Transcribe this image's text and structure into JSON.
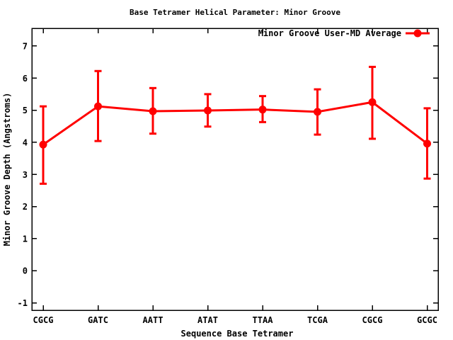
{
  "window": {
    "background": "#ffffff"
  },
  "chart_data": {
    "type": "line",
    "title": "Base Tetramer Helical Parameter: Minor Groove",
    "xlabel": "Sequence Base Tetramer",
    "ylabel": "Minor Groove Depth (Angstroms)",
    "categories": [
      "CGCG",
      "GATC",
      "AATT",
      "ATAT",
      "TTAA",
      "TCGA",
      "CGCG",
      "GCGC"
    ],
    "y_ticks": [
      -1,
      0,
      1,
      2,
      3,
      4,
      5,
      6,
      7
    ],
    "ylim": [
      -1.23,
      7.55
    ],
    "grid": false,
    "legend_position": "top-right-inside",
    "series": [
      {
        "name": "Minor Groove User-MD Average",
        "color": "#ff0000",
        "marker": "filled-circle",
        "values": [
          3.93,
          5.12,
          4.97,
          4.99,
          5.02,
          4.95,
          5.25,
          3.96
        ],
        "err_low": [
          2.71,
          4.04,
          4.27,
          4.49,
          4.63,
          4.24,
          4.11,
          2.87
        ],
        "err_high": [
          5.12,
          6.22,
          5.69,
          5.5,
          5.44,
          5.65,
          6.35,
          5.06
        ]
      }
    ]
  },
  "colors": {
    "series": "#ff0000",
    "axis": "#000000",
    "background": "#ffffff"
  }
}
